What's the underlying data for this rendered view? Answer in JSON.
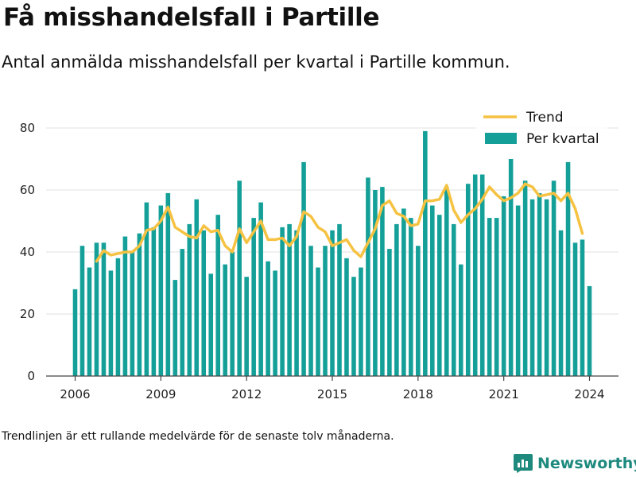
{
  "title": "Få misshandelsfall i Partille",
  "subtitle": "Antal anmälda misshandelsfall per kvartal i Partille kommun.",
  "footnote": "Trendlinjen är ett rullande medelvärde för de senaste tolv månaderna.",
  "brand": {
    "name": "Newsworthy",
    "icon": "newsworthy-logo-icon",
    "color": "#1e8a7e"
  },
  "chart_data": {
    "type": "bar",
    "title": "",
    "xlabel": "",
    "ylabel": "",
    "ylim": [
      0,
      80
    ],
    "yticks": [
      0,
      20,
      40,
      60,
      80
    ],
    "xticks": [
      "2006",
      "2009",
      "2012",
      "2015",
      "2018",
      "2021",
      "2024"
    ],
    "grid": true,
    "legend_position": "top-right",
    "x_start": "2006 Q1",
    "series": [
      {
        "name": "Per kvartal",
        "type": "bar",
        "color": "#14a098",
        "values": [
          28,
          42,
          35,
          43,
          43,
          34,
          38,
          45,
          40,
          46,
          56,
          48,
          55,
          59,
          31,
          41,
          49,
          57,
          47,
          33,
          52,
          36,
          40,
          63,
          32,
          51,
          56,
          37,
          34,
          48,
          49,
          47,
          69,
          42,
          35,
          42,
          47,
          49,
          38,
          32,
          35,
          64,
          60,
          61,
          41,
          49,
          54,
          51,
          42,
          79,
          55,
          52,
          61,
          49,
          36,
          62,
          65,
          65,
          51,
          51,
          58,
          70,
          55,
          63,
          57,
          59,
          57,
          63,
          47,
          69,
          43,
          44,
          29
        ]
      },
      {
        "name": "Trend",
        "type": "line",
        "color": "#f5c242",
        "start_index": 3,
        "values": [
          37,
          40.5,
          39,
          39.5,
          40,
          40,
          42,
          47,
          47.5,
          50,
          54.5,
          48,
          46.5,
          45,
          44.5,
          48.5,
          46.5,
          47,
          42,
          40,
          47.5,
          43,
          46.5,
          50,
          44,
          44,
          44.5,
          42,
          45,
          53,
          51.5,
          48,
          46.5,
          42,
          43,
          44,
          40.5,
          38.5,
          43,
          47.5,
          55,
          56.5,
          52.5,
          51.5,
          48.5,
          49,
          56.5,
          56.5,
          57,
          61.5,
          53.5,
          49.5,
          52,
          54,
          57,
          61,
          58.5,
          56.5,
          57.5,
          59,
          62,
          61,
          58,
          58.5,
          59,
          56.5,
          59,
          54,
          46
        ]
      }
    ]
  }
}
